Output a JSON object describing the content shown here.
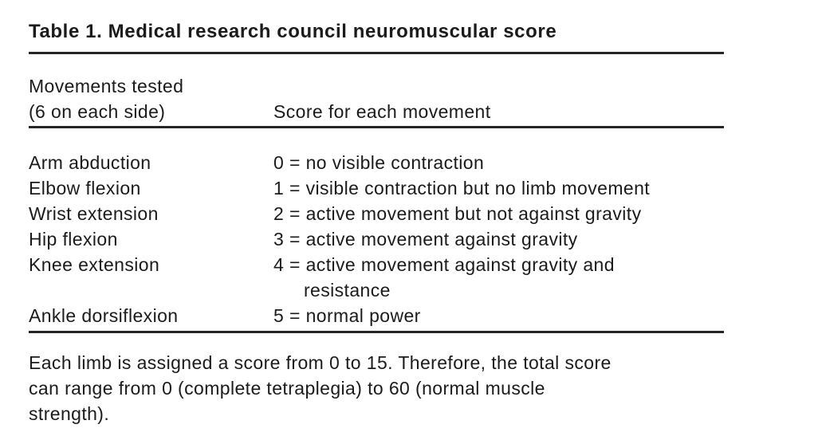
{
  "table": {
    "title": "Table 1. Medical research council neuromuscular score",
    "header": {
      "movements_line1": "Movements tested",
      "movements_line2": "(6 on each side)",
      "score": "Score for each movement"
    },
    "rows": [
      {
        "movement": "Arm abduction",
        "score": "0 = no visible contraction"
      },
      {
        "movement": "Elbow flexion",
        "score": "1 = visible contraction but no limb movement"
      },
      {
        "movement": "Wrist extension",
        "score": "2 = active movement but not against gravity"
      },
      {
        "movement": "Hip flexion",
        "score": "3 = active movement against gravity"
      },
      {
        "movement": "Knee extension",
        "score": "4 = active movement against gravity and",
        "score_continued": "resistance"
      },
      {
        "movement": "Ankle dorsiflexion",
        "score": "5 = normal power"
      }
    ],
    "footnote_lines": [
      "Each limb is assigned a score from 0 to 15. Therefore, the total score",
      "can range from 0 (complete tetraplegia) to 60 (normal muscle",
      "strength)."
    ],
    "footnote_text": "Each limb is assigned a score from 0 to 15. Therefore, the total score can range from 0 (complete tetraplegia) to 60 (normal muscle strength)."
  },
  "colors": {
    "text": "#1b1b1b",
    "rule": "#262626",
    "background": "#ffffff"
  }
}
